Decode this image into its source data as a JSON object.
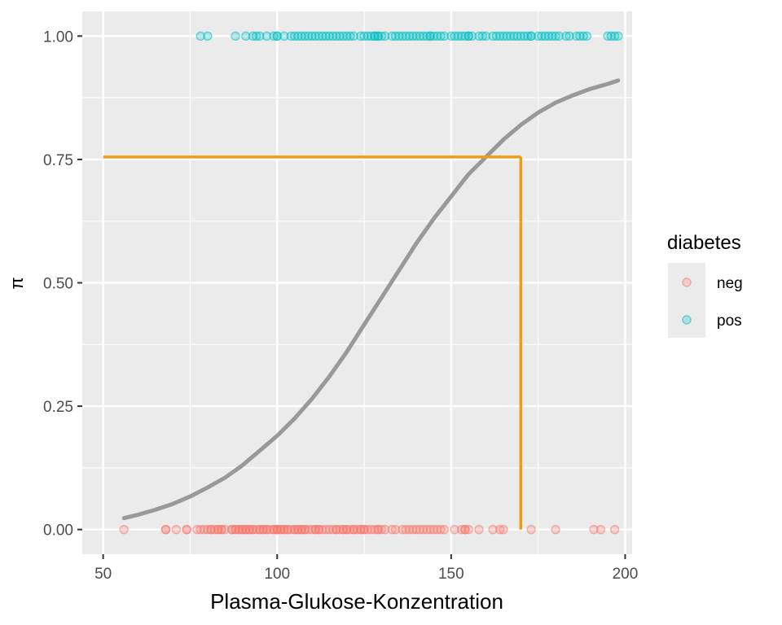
{
  "chart_data": {
    "type": "scatter",
    "title": "",
    "xlabel": "Plasma-Glukose-Konzentration",
    "ylabel": "π",
    "xlim": [
      44,
      202
    ],
    "ylim": [
      -0.05,
      1.05
    ],
    "x_ticks": [
      50,
      100,
      150,
      200
    ],
    "y_ticks": [
      0,
      0.25,
      0.5,
      0.75,
      1
    ],
    "x_tick_labels": [
      "50",
      "100",
      "150",
      "200"
    ],
    "y_tick_labels": [
      "0.00",
      "0.25",
      "0.50",
      "0.75",
      "1.00"
    ],
    "grid": true,
    "legend": {
      "title": "diabetes",
      "position": "right",
      "entries": [
        {
          "label": "neg",
          "color": "#F8766D"
        },
        {
          "label": "pos",
          "color": "#00BFC4"
        }
      ]
    },
    "series": [
      {
        "name": "neg",
        "color": "#F8766D",
        "y": 0,
        "x": [
          56,
          68,
          68,
          71,
          74,
          74,
          77,
          78,
          79,
          80,
          81,
          81,
          82,
          83,
          83,
          84,
          84,
          85,
          87,
          87,
          88,
          88,
          89,
          89,
          90,
          90,
          91,
          91,
          92,
          92,
          93,
          93,
          94,
          95,
          95,
          96,
          96,
          97,
          97,
          98,
          99,
          99,
          100,
          100,
          100,
          101,
          101,
          102,
          102,
          103,
          103,
          104,
          105,
          105,
          106,
          106,
          107,
          107,
          108,
          108,
          109,
          110,
          111,
          111,
          112,
          112,
          113,
          114,
          115,
          116,
          117,
          117,
          118,
          119,
          119,
          120,
          120,
          121,
          122,
          122,
          123,
          124,
          124,
          125,
          125,
          126,
          127,
          128,
          129,
          129,
          130,
          131,
          133,
          134,
          136,
          137,
          138,
          139,
          140,
          141,
          142,
          143,
          144,
          145,
          146,
          147,
          148,
          151,
          153,
          154,
          154,
          155,
          158,
          162,
          164,
          165,
          173,
          180,
          191,
          193,
          197
        ]
      },
      {
        "name": "pos",
        "color": "#00BFC4",
        "y": 1,
        "x": [
          78,
          80,
          88,
          91,
          93,
          94,
          95,
          97,
          99,
          100,
          100,
          102,
          104,
          105,
          106,
          107,
          108,
          109,
          110,
          111,
          112,
          113,
          114,
          115,
          116,
          117,
          118,
          119,
          120,
          121,
          122,
          124,
          125,
          126,
          127,
          128,
          128,
          129,
          129,
          130,
          131,
          133,
          134,
          135,
          136,
          137,
          138,
          139,
          140,
          141,
          142,
          143,
          144,
          144,
          145,
          146,
          147,
          148,
          150,
          151,
          152,
          153,
          154,
          155,
          155,
          156,
          158,
          159,
          160,
          162,
          163,
          164,
          165,
          166,
          167,
          168,
          169,
          170,
          171,
          172,
          173,
          173,
          175,
          176,
          177,
          178,
          179,
          180,
          181,
          183,
          184,
          186,
          187,
          188,
          189,
          195,
          196,
          197,
          198
        ]
      }
    ],
    "fitted_curve": {
      "color": "#999999",
      "x": [
        56,
        60,
        65,
        70,
        75,
        80,
        85,
        90,
        95,
        100,
        105,
        110,
        115,
        120,
        125,
        130,
        135,
        140,
        145,
        150,
        155,
        160,
        165,
        170,
        175,
        180,
        185,
        190,
        195,
        198
      ],
      "y": [
        0.023,
        0.03,
        0.04,
        0.052,
        0.067,
        0.085,
        0.105,
        0.13,
        0.16,
        0.19,
        0.225,
        0.265,
        0.31,
        0.36,
        0.415,
        0.47,
        0.525,
        0.58,
        0.63,
        0.675,
        0.72,
        0.755,
        0.79,
        0.82,
        0.845,
        0.865,
        0.88,
        0.893,
        0.903,
        0.91
      ]
    },
    "annotation_lines": {
      "color": "#F39C12",
      "x": 170,
      "y": 0.755,
      "x_start": 50,
      "y_start": 0
    }
  }
}
